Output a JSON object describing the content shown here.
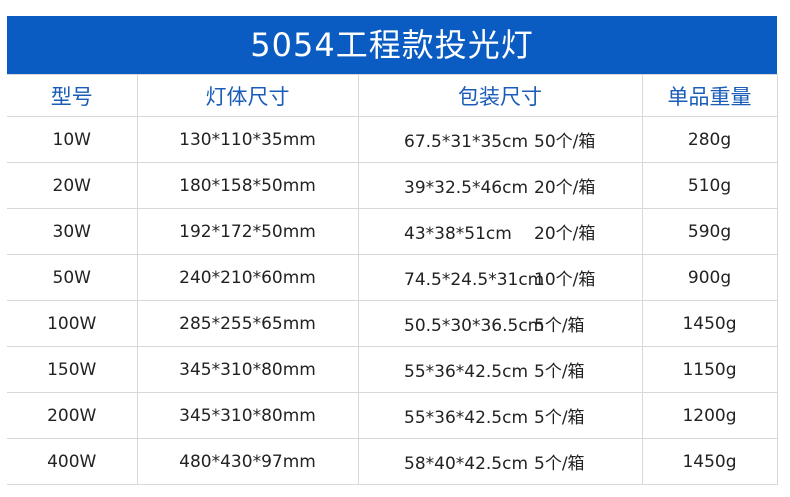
{
  "title": "5054工程款投光灯",
  "headers": [
    "型号",
    "灯体尺寸",
    "包装尺寸",
    "单品重量"
  ],
  "rows": [
    {
      "model": "10W",
      "body_size": "130*110*35mm",
      "pack_size": "67.5*31*35cm",
      "pack_qty": "50个/箱",
      "weight": "280g"
    },
    {
      "model": "20W",
      "body_size": "180*158*50mm",
      "pack_size": "39*32.5*46cm",
      "pack_qty": "20个/箱",
      "weight": "510g"
    },
    {
      "model": "30W",
      "body_size": "192*172*50mm",
      "pack_size": "43*38*51cm",
      "pack_qty": "20个/箱",
      "weight": "590g"
    },
    {
      "model": "50W",
      "body_size": "240*210*60mm",
      "pack_size": "74.5*24.5*31cm",
      "pack_qty": "10个/箱",
      "weight": "900g"
    },
    {
      "model": "100W",
      "body_size": "285*255*65mm",
      "pack_size": "50.5*30*36.5cm",
      "pack_qty": "5个/箱",
      "weight": "1450g"
    },
    {
      "model": "150W",
      "body_size": "345*310*80mm",
      "pack_size": "55*36*42.5cm",
      "pack_qty": "5个/箱",
      "weight": "1150g"
    },
    {
      "model": "200W",
      "body_size": "345*310*80mm",
      "pack_size": "55*36*42.5cm",
      "pack_qty": "5个/箱",
      "weight": "1200g"
    },
    {
      "model": "400W",
      "body_size": "480*430*97mm",
      "pack_size": "58*40*42.5cm",
      "pack_qty": "5个/箱",
      "weight": "1450g"
    }
  ],
  "colors": {
    "title_bg": "#0a5cc2",
    "header_text": "#1a5cb8"
  }
}
